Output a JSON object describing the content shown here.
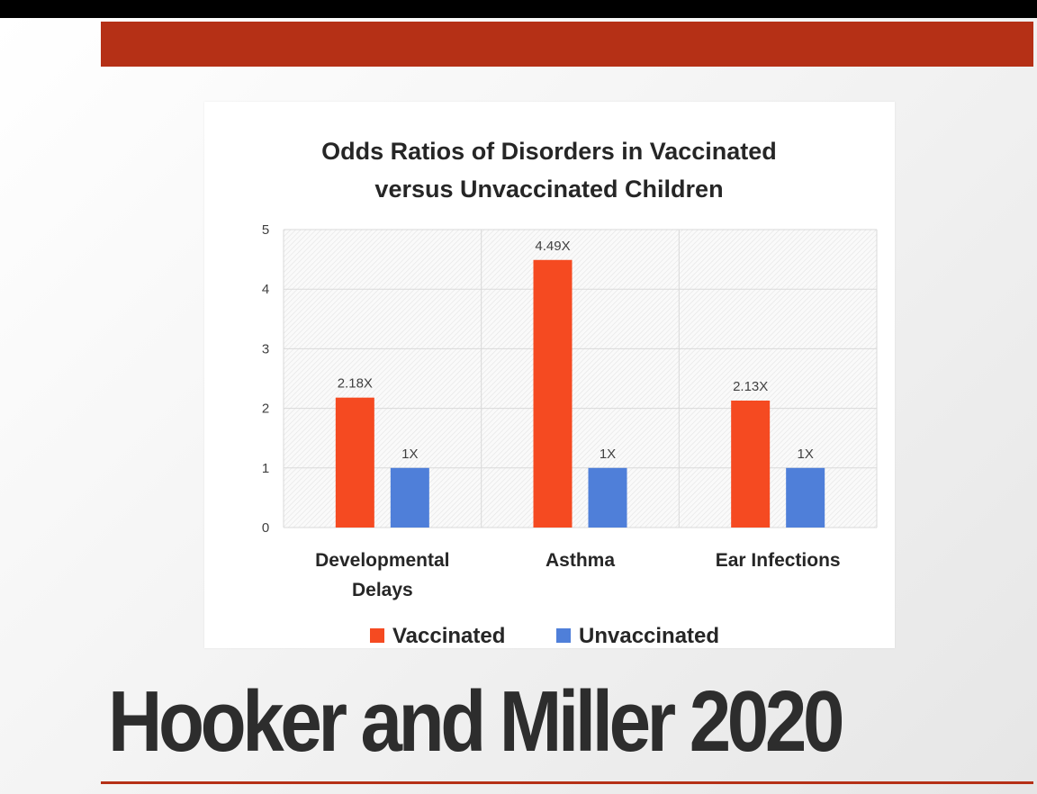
{
  "slide": {
    "title": "Hooker and Miller 2020",
    "accent_color": "#b53016"
  },
  "chart_data": {
    "type": "bar",
    "title_lines": [
      "Odds Ratios of Disorders in Vaccinated",
      "versus Unvaccinated Children"
    ],
    "categories": [
      [
        "Developmental",
        "Delays"
      ],
      [
        "Asthma"
      ],
      [
        "Ear Infections"
      ]
    ],
    "series": [
      {
        "name": "Vaccinated",
        "color": "#f54a21",
        "values": [
          2.18,
          4.49,
          2.13
        ],
        "labels": [
          "2.18X",
          "4.49X",
          "2.13X"
        ]
      },
      {
        "name": "Unvaccinated",
        "color": "#4f7fd9",
        "values": [
          1,
          1,
          1
        ],
        "labels": [
          "1X",
          "1X",
          "1X"
        ]
      }
    ],
    "ylim": [
      0,
      5
    ],
    "yticks": [
      "0",
      "1",
      "2",
      "3",
      "4",
      "5"
    ],
    "grid": true,
    "legend_position": "bottom"
  }
}
